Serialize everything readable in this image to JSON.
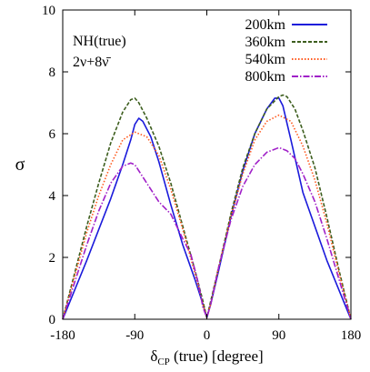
{
  "chart_data": {
    "type": "line",
    "xlabel": "δ_CP (true) [degree]",
    "xlabel_parts": {
      "main": "δ",
      "sub": "CP",
      "rest": " (true) [degree]"
    },
    "ylabel": "σ",
    "xlim": [
      -180,
      180
    ],
    "ylim": [
      0,
      10
    ],
    "xticks": [
      -180,
      -90,
      0,
      90,
      180
    ],
    "yticks": [
      0,
      2,
      4,
      6,
      8,
      10
    ],
    "grid": false,
    "legend_position": "top-right",
    "annotations": [
      "NH(true)",
      "2ν+8ν̄"
    ],
    "series": [
      {
        "name": "200km",
        "color": "#1a1adb",
        "style": "solid",
        "x": [
          -180,
          -150,
          -120,
          -105,
          -95,
          -90,
          -85,
          -80,
          -70,
          -60,
          -45,
          -30,
          -15,
          -5,
          0,
          5,
          15,
          30,
          45,
          60,
          75,
          85,
          90,
          95,
          105,
          120,
          150,
          180
        ],
        "y": [
          0,
          1.9,
          3.9,
          5.0,
          5.8,
          6.3,
          6.5,
          6.4,
          5.9,
          5.1,
          3.7,
          2.4,
          1.3,
          0.5,
          0.05,
          0.5,
          1.6,
          3.3,
          4.8,
          6.0,
          6.8,
          7.15,
          7.15,
          6.9,
          5.8,
          4.1,
          1.9,
          0
        ]
      },
      {
        "name": "360km",
        "color": "#3d5e1e",
        "style": "dashed",
        "x": [
          -180,
          -165,
          -150,
          -135,
          -120,
          -105,
          -95,
          -90,
          -85,
          -75,
          -60,
          -45,
          -30,
          -15,
          -5,
          0,
          5,
          15,
          30,
          45,
          60,
          75,
          90,
          95,
          100,
          110,
          120,
          135,
          150,
          165,
          180
        ],
        "y": [
          0,
          1.5,
          3.0,
          4.4,
          5.7,
          6.7,
          7.1,
          7.15,
          7.0,
          6.5,
          5.6,
          4.4,
          3.0,
          1.6,
          0.6,
          0.05,
          0.6,
          1.7,
          3.4,
          4.9,
          6.0,
          6.8,
          7.2,
          7.25,
          7.2,
          6.8,
          6.1,
          4.9,
          3.3,
          1.6,
          0
        ]
      },
      {
        "name": "540km",
        "color": "#ff5a1e",
        "style": "dotted",
        "x": [
          -180,
          -165,
          -150,
          -135,
          -120,
          -105,
          -90,
          -75,
          -60,
          -45,
          -30,
          -15,
          -5,
          0,
          5,
          15,
          30,
          45,
          60,
          75,
          90,
          105,
          120,
          135,
          150,
          165,
          180
        ],
        "y": [
          0,
          1.4,
          2.8,
          4.0,
          5.0,
          5.8,
          6.05,
          5.9,
          5.3,
          4.2,
          2.9,
          1.5,
          0.5,
          0.05,
          0.5,
          1.7,
          3.3,
          4.7,
          5.8,
          6.4,
          6.6,
          6.4,
          5.6,
          4.5,
          3.1,
          1.5,
          0
        ]
      },
      {
        "name": "800km",
        "color": "#a020c8",
        "style": "dashdot",
        "x": [
          -180,
          -165,
          -150,
          -135,
          -120,
          -105,
          -95,
          -90,
          -85,
          -75,
          -60,
          -45,
          -30,
          -20,
          -10,
          -5,
          0,
          5,
          15,
          30,
          45,
          60,
          75,
          90,
          100,
          110,
          120,
          135,
          150,
          165,
          180
        ],
        "y": [
          0,
          1.2,
          2.4,
          3.5,
          4.4,
          4.95,
          5.05,
          5.0,
          4.8,
          4.4,
          3.8,
          3.4,
          2.6,
          2.1,
          1.1,
          0.4,
          0.05,
          0.5,
          1.7,
          3.2,
          4.3,
          5.0,
          5.4,
          5.55,
          5.45,
          5.2,
          4.7,
          3.8,
          2.6,
          1.3,
          0
        ]
      }
    ]
  }
}
